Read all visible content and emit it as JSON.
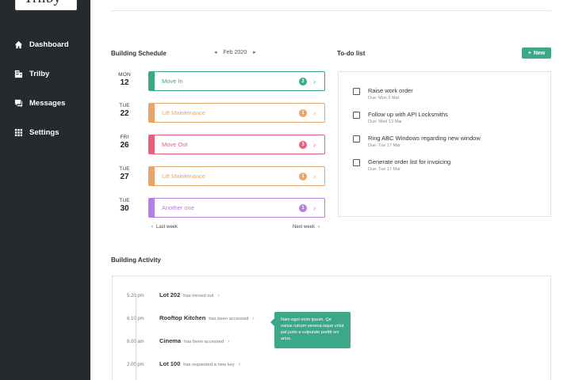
{
  "app": {
    "logo": "Trilby"
  },
  "sidebar": {
    "items": [
      {
        "label": "Dashboard",
        "icon": "home-icon"
      },
      {
        "label": "Trilby",
        "icon": "building-icon"
      },
      {
        "label": "Messages",
        "icon": "chat-icon"
      },
      {
        "label": "Settings",
        "icon": "grid-icon"
      }
    ]
  },
  "schedule": {
    "title": "Building Schedule",
    "month": "Feb 2020",
    "days": [
      {
        "dow": "MON",
        "num": "12"
      },
      {
        "dow": "TUE",
        "num": "22"
      },
      {
        "dow": "FRI",
        "num": "26"
      },
      {
        "dow": "TUE",
        "num": "27"
      },
      {
        "dow": "TUE",
        "num": "30"
      }
    ],
    "events": [
      {
        "label": "Move In",
        "count": "2",
        "color": "#3ca88a"
      },
      {
        "label": "Lift Maintenance",
        "count": "1",
        "color": "#e8a56a"
      },
      {
        "label": "Move Out",
        "count": "3",
        "color": "#e8607a"
      },
      {
        "label": "Lift Maintenance",
        "count": "1",
        "color": "#e8a56a"
      },
      {
        "label": "Another one",
        "count": "1",
        "color": "#b57ee0"
      }
    ],
    "last_week": "Last week",
    "next_week": "Next week"
  },
  "todo": {
    "title": "To-do list",
    "new_label": "New",
    "items": [
      {
        "text": "Raise work order",
        "due": "Due: Mon 2 Mar"
      },
      {
        "text": "Follow up with API Locksmiths",
        "due": "Due: Wed 13 Mar"
      },
      {
        "text": "Ring ABC Windows regarding new window",
        "due": "Due: Tue 17 Mar"
      },
      {
        "text": "Generate order list for invoicing",
        "due": "Due: Tue 17 Mar"
      }
    ]
  },
  "activity": {
    "title": "Building Activity",
    "items": [
      {
        "time": "5.20 pm",
        "location": "Lot 202",
        "desc": "has moved out"
      },
      {
        "time": "6.10 pm",
        "location": "Rooftop Kitchen",
        "desc": "has been accessed"
      },
      {
        "time": "8.00 am",
        "location": "Cinema",
        "desc": "has been accessed"
      },
      {
        "time": "2.00 pm",
        "location": "Lot 100",
        "desc": "has requested a new key"
      }
    ],
    "tooltip": "Nam eget enim ipsum. Qe varius rutrum venena isque volut pat justo a vulputate porttit orv arius."
  }
}
